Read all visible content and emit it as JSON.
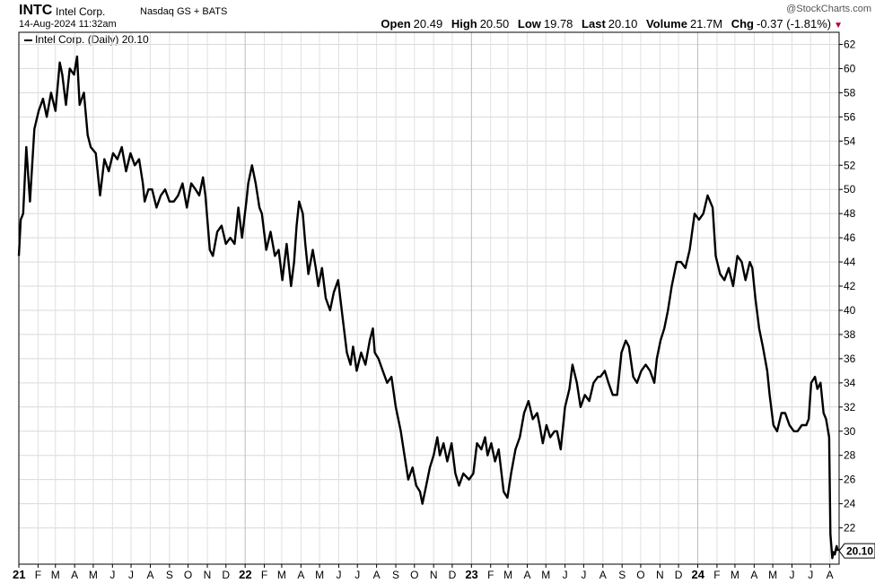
{
  "header": {
    "symbol": "INTC",
    "company": "Intel Corp.",
    "exchange": "Nasdaq GS + BATS",
    "datetime": "14-Aug-2024 11:32am",
    "credit": "@StockCharts.com"
  },
  "quote": {
    "open_label": "Open",
    "open": "20.49",
    "high_label": "High",
    "high": "20.50",
    "low_label": "Low",
    "low": "19.78",
    "last_label": "Last",
    "last": "20.10",
    "volume_label": "Volume",
    "volume": "21.7M",
    "chg_label": "Chg",
    "chg": "-0.37 (-1.81%)",
    "chg_color": "#b0003a"
  },
  "legend": {
    "label": "Intel Corp. (Daily) 20.10"
  },
  "last_price_tag": "20.10",
  "chart_data": {
    "type": "line",
    "series": [
      {
        "name": "Intel Corp. (Daily) 20.10",
        "color": "#000000",
        "points": [
          [
            "2021-01-01",
            44.5
          ],
          [
            "2021-01-04",
            47.5
          ],
          [
            "2021-01-08",
            48.0
          ],
          [
            "2021-01-13",
            53.5
          ],
          [
            "2021-01-19",
            49.0
          ],
          [
            "2021-01-26",
            55.0
          ],
          [
            "2021-02-02",
            56.5
          ],
          [
            "2021-02-09",
            57.5
          ],
          [
            "2021-02-15",
            56.0
          ],
          [
            "2021-02-22",
            58.0
          ],
          [
            "2021-03-01",
            56.5
          ],
          [
            "2021-03-08",
            60.5
          ],
          [
            "2021-03-12",
            59.5
          ],
          [
            "2021-03-18",
            57.0
          ],
          [
            "2021-03-24",
            60.0
          ],
          [
            "2021-03-31",
            59.5
          ],
          [
            "2021-04-05",
            61.0
          ],
          [
            "2021-04-09",
            57.0
          ],
          [
            "2021-04-16",
            58.0
          ],
          [
            "2021-04-22",
            54.5
          ],
          [
            "2021-04-27",
            53.5
          ],
          [
            "2021-05-05",
            53.0
          ],
          [
            "2021-05-12",
            49.5
          ],
          [
            "2021-05-19",
            52.5
          ],
          [
            "2021-05-26",
            51.5
          ],
          [
            "2021-06-02",
            53.0
          ],
          [
            "2021-06-09",
            52.5
          ],
          [
            "2021-06-16",
            53.5
          ],
          [
            "2021-06-23",
            51.5
          ],
          [
            "2021-06-30",
            53.0
          ],
          [
            "2021-07-07",
            52.0
          ],
          [
            "2021-07-14",
            52.5
          ],
          [
            "2021-07-20",
            50.5
          ],
          [
            "2021-07-23",
            49.0
          ],
          [
            "2021-07-29",
            50.0
          ],
          [
            "2021-08-04",
            50.0
          ],
          [
            "2021-08-11",
            48.5
          ],
          [
            "2021-08-18",
            49.5
          ],
          [
            "2021-08-25",
            50.0
          ],
          [
            "2021-09-01",
            49.0
          ],
          [
            "2021-09-08",
            49.0
          ],
          [
            "2021-09-15",
            49.5
          ],
          [
            "2021-09-22",
            50.5
          ],
          [
            "2021-09-29",
            48.5
          ],
          [
            "2021-10-06",
            50.5
          ],
          [
            "2021-10-13",
            50.0
          ],
          [
            "2021-10-19",
            49.5
          ],
          [
            "2021-10-25",
            51.0
          ],
          [
            "2021-10-29",
            49.5
          ],
          [
            "2021-11-05",
            45.0
          ],
          [
            "2021-11-10",
            44.5
          ],
          [
            "2021-11-17",
            46.5
          ],
          [
            "2021-11-24",
            47.0
          ],
          [
            "2021-12-01",
            45.5
          ],
          [
            "2021-12-08",
            46.0
          ],
          [
            "2021-12-15",
            45.5
          ],
          [
            "2021-12-21",
            48.5
          ],
          [
            "2021-12-27",
            46.0
          ],
          [
            "2022-01-03",
            49.0
          ],
          [
            "2022-01-06",
            50.5
          ],
          [
            "2022-01-12",
            52.0
          ],
          [
            "2022-01-18",
            50.5
          ],
          [
            "2022-01-24",
            48.5
          ],
          [
            "2022-01-28",
            48.0
          ],
          [
            "2022-02-04",
            45.0
          ],
          [
            "2022-02-11",
            46.5
          ],
          [
            "2022-02-18",
            44.5
          ],
          [
            "2022-02-24",
            45.0
          ],
          [
            "2022-03-02",
            42.5
          ],
          [
            "2022-03-09",
            45.5
          ],
          [
            "2022-03-16",
            42.0
          ],
          [
            "2022-03-21",
            44.0
          ],
          [
            "2022-03-25",
            47.0
          ],
          [
            "2022-03-29",
            49.0
          ],
          [
            "2022-04-04",
            48.0
          ],
          [
            "2022-04-08",
            45.5
          ],
          [
            "2022-04-13",
            43.0
          ],
          [
            "2022-04-20",
            45.0
          ],
          [
            "2022-04-25",
            43.5
          ],
          [
            "2022-04-29",
            42.0
          ],
          [
            "2022-05-05",
            43.5
          ],
          [
            "2022-05-11",
            41.0
          ],
          [
            "2022-05-18",
            40.0
          ],
          [
            "2022-05-24",
            41.5
          ],
          [
            "2022-05-31",
            42.5
          ],
          [
            "2022-06-07",
            39.5
          ],
          [
            "2022-06-14",
            36.5
          ],
          [
            "2022-06-20",
            35.5
          ],
          [
            "2022-06-24",
            37.0
          ],
          [
            "2022-06-30",
            35.0
          ],
          [
            "2022-07-07",
            36.5
          ],
          [
            "2022-07-14",
            35.5
          ],
          [
            "2022-07-21",
            37.5
          ],
          [
            "2022-07-26",
            38.5
          ],
          [
            "2022-07-29",
            36.5
          ],
          [
            "2022-08-04",
            36.0
          ],
          [
            "2022-08-11",
            35.0
          ],
          [
            "2022-08-18",
            34.0
          ],
          [
            "2022-08-25",
            34.5
          ],
          [
            "2022-09-01",
            32.0
          ],
          [
            "2022-09-09",
            30.0
          ],
          [
            "2022-09-15",
            28.0
          ],
          [
            "2022-09-21",
            26.0
          ],
          [
            "2022-09-28",
            27.0
          ],
          [
            "2022-10-04",
            25.5
          ],
          [
            "2022-10-10",
            25.0
          ],
          [
            "2022-10-14",
            24.0
          ],
          [
            "2022-10-20",
            25.5
          ],
          [
            "2022-10-26",
            27.0
          ],
          [
            "2022-11-01",
            28.0
          ],
          [
            "2022-11-07",
            29.5
          ],
          [
            "2022-11-11",
            28.0
          ],
          [
            "2022-11-17",
            29.0
          ],
          [
            "2022-11-23",
            27.5
          ],
          [
            "2022-11-30",
            29.0
          ],
          [
            "2022-12-06",
            26.5
          ],
          [
            "2022-12-12",
            25.5
          ],
          [
            "2022-12-19",
            26.5
          ],
          [
            "2022-12-28",
            26.0
          ],
          [
            "2023-01-04",
            26.5
          ],
          [
            "2023-01-10",
            29.0
          ],
          [
            "2023-01-17",
            28.5
          ],
          [
            "2023-01-23",
            29.5
          ],
          [
            "2023-01-27",
            28.0
          ],
          [
            "2023-02-02",
            29.0
          ],
          [
            "2023-02-08",
            27.5
          ],
          [
            "2023-02-14",
            28.5
          ],
          [
            "2023-02-22",
            25.0
          ],
          [
            "2023-02-28",
            24.5
          ],
          [
            "2023-03-06",
            26.5
          ],
          [
            "2023-03-13",
            28.5
          ],
          [
            "2023-03-20",
            29.5
          ],
          [
            "2023-03-27",
            31.5
          ],
          [
            "2023-04-03",
            32.5
          ],
          [
            "2023-04-10",
            31.0
          ],
          [
            "2023-04-17",
            31.5
          ],
          [
            "2023-04-21",
            30.5
          ],
          [
            "2023-04-26",
            29.0
          ],
          [
            "2023-05-02",
            30.5
          ],
          [
            "2023-05-08",
            29.5
          ],
          [
            "2023-05-15",
            30.0
          ],
          [
            "2023-05-19",
            30.0
          ],
          [
            "2023-05-25",
            28.5
          ],
          [
            "2023-06-01",
            32.0
          ],
          [
            "2023-06-08",
            33.5
          ],
          [
            "2023-06-13",
            35.5
          ],
          [
            "2023-06-20",
            34.0
          ],
          [
            "2023-06-26",
            32.0
          ],
          [
            "2023-07-03",
            33.0
          ],
          [
            "2023-07-10",
            32.5
          ],
          [
            "2023-07-17",
            34.0
          ],
          [
            "2023-07-24",
            34.5
          ],
          [
            "2023-07-28",
            34.5
          ],
          [
            "2023-08-04",
            35.0
          ],
          [
            "2023-08-10",
            34.0
          ],
          [
            "2023-08-17",
            33.0
          ],
          [
            "2023-08-24",
            33.0
          ],
          [
            "2023-08-31",
            36.5
          ],
          [
            "2023-09-07",
            37.5
          ],
          [
            "2023-09-12",
            37.0
          ],
          [
            "2023-09-19",
            34.5
          ],
          [
            "2023-09-25",
            34.0
          ],
          [
            "2023-10-02",
            35.0
          ],
          [
            "2023-10-09",
            35.5
          ],
          [
            "2023-10-16",
            35.0
          ],
          [
            "2023-10-23",
            34.0
          ],
          [
            "2023-10-27",
            36.0
          ],
          [
            "2023-11-02",
            37.5
          ],
          [
            "2023-11-08",
            38.5
          ],
          [
            "2023-11-14",
            40.0
          ],
          [
            "2023-11-20",
            42.0
          ],
          [
            "2023-11-28",
            44.0
          ],
          [
            "2023-12-05",
            44.0
          ],
          [
            "2023-12-12",
            43.5
          ],
          [
            "2023-12-19",
            45.0
          ],
          [
            "2023-12-27",
            48.0
          ],
          [
            "2024-01-03",
            47.5
          ],
          [
            "2024-01-10",
            48.0
          ],
          [
            "2024-01-17",
            49.5
          ],
          [
            "2024-01-25",
            48.5
          ],
          [
            "2024-01-30",
            44.5
          ],
          [
            "2024-02-06",
            43.0
          ],
          [
            "2024-02-13",
            42.5
          ],
          [
            "2024-02-20",
            43.5
          ],
          [
            "2024-02-27",
            42.0
          ],
          [
            "2024-03-05",
            44.5
          ],
          [
            "2024-03-12",
            44.0
          ],
          [
            "2024-03-18",
            42.5
          ],
          [
            "2024-03-25",
            44.0
          ],
          [
            "2024-03-29",
            43.5
          ],
          [
            "2024-04-03",
            41.0
          ],
          [
            "2024-04-09",
            38.5
          ],
          [
            "2024-04-15",
            37.0
          ],
          [
            "2024-04-22",
            35.0
          ],
          [
            "2024-04-26",
            33.0
          ],
          [
            "2024-05-02",
            30.5
          ],
          [
            "2024-05-08",
            30.0
          ],
          [
            "2024-05-15",
            31.5
          ],
          [
            "2024-05-21",
            31.5
          ],
          [
            "2024-05-28",
            30.5
          ],
          [
            "2024-06-04",
            30.0
          ],
          [
            "2024-06-10",
            30.0
          ],
          [
            "2024-06-17",
            30.5
          ],
          [
            "2024-06-24",
            30.5
          ],
          [
            "2024-06-28",
            31.0
          ],
          [
            "2024-07-02",
            34.0
          ],
          [
            "2024-07-08",
            34.5
          ],
          [
            "2024-07-12",
            33.5
          ],
          [
            "2024-07-17",
            34.0
          ],
          [
            "2024-07-22",
            31.5
          ],
          [
            "2024-07-26",
            31.0
          ],
          [
            "2024-07-31",
            29.5
          ],
          [
            "2024-08-02",
            21.5
          ],
          [
            "2024-08-05",
            19.5
          ],
          [
            "2024-08-07",
            20.0
          ],
          [
            "2024-08-09",
            19.8
          ],
          [
            "2024-08-12",
            20.5
          ],
          [
            "2024-08-14",
            20.1
          ]
        ]
      }
    ],
    "x_range": [
      "2021-01-01",
      "2024-08-16"
    ],
    "ylim": [
      19,
      63
    ],
    "y_ticks": [
      22,
      24,
      26,
      28,
      30,
      32,
      34,
      36,
      38,
      40,
      42,
      44,
      46,
      48,
      50,
      52,
      54,
      56,
      58,
      60,
      62
    ],
    "x_ticks": [
      {
        "date": "2021-01-01",
        "label": "21",
        "major": true
      },
      {
        "date": "2021-02-01",
        "label": "F"
      },
      {
        "date": "2021-03-01",
        "label": "M"
      },
      {
        "date": "2021-04-01",
        "label": "A"
      },
      {
        "date": "2021-05-01",
        "label": "M"
      },
      {
        "date": "2021-06-01",
        "label": "J"
      },
      {
        "date": "2021-07-01",
        "label": "J"
      },
      {
        "date": "2021-08-01",
        "label": "A"
      },
      {
        "date": "2021-09-01",
        "label": "S"
      },
      {
        "date": "2021-10-01",
        "label": "O"
      },
      {
        "date": "2021-11-01",
        "label": "N"
      },
      {
        "date": "2021-12-01",
        "label": "D"
      },
      {
        "date": "2022-01-01",
        "label": "22",
        "major": true
      },
      {
        "date": "2022-02-01",
        "label": "F"
      },
      {
        "date": "2022-03-01",
        "label": "M"
      },
      {
        "date": "2022-04-01",
        "label": "A"
      },
      {
        "date": "2022-05-01",
        "label": "M"
      },
      {
        "date": "2022-06-01",
        "label": "J"
      },
      {
        "date": "2022-07-01",
        "label": "J"
      },
      {
        "date": "2022-08-01",
        "label": "A"
      },
      {
        "date": "2022-09-01",
        "label": "S"
      },
      {
        "date": "2022-10-01",
        "label": "O"
      },
      {
        "date": "2022-11-01",
        "label": "N"
      },
      {
        "date": "2022-12-01",
        "label": "D"
      },
      {
        "date": "2023-01-01",
        "label": "23",
        "major": true
      },
      {
        "date": "2023-02-01",
        "label": "F"
      },
      {
        "date": "2023-03-01",
        "label": "M"
      },
      {
        "date": "2023-04-01",
        "label": "A"
      },
      {
        "date": "2023-05-01",
        "label": "M"
      },
      {
        "date": "2023-06-01",
        "label": "J"
      },
      {
        "date": "2023-07-01",
        "label": "J"
      },
      {
        "date": "2023-08-01",
        "label": "A"
      },
      {
        "date": "2023-09-01",
        "label": "S"
      },
      {
        "date": "2023-10-01",
        "label": "O"
      },
      {
        "date": "2023-11-01",
        "label": "N"
      },
      {
        "date": "2023-12-01",
        "label": "D"
      },
      {
        "date": "2024-01-01",
        "label": "24",
        "major": true
      },
      {
        "date": "2024-02-01",
        "label": "F"
      },
      {
        "date": "2024-03-01",
        "label": "M"
      },
      {
        "date": "2024-04-01",
        "label": "A"
      },
      {
        "date": "2024-05-01",
        "label": "M"
      },
      {
        "date": "2024-06-01",
        "label": "J"
      },
      {
        "date": "2024-07-01",
        "label": "J"
      },
      {
        "date": "2024-08-01",
        "label": "A"
      }
    ],
    "grid": true,
    "title": "",
    "xlabel": "",
    "ylabel": ""
  }
}
